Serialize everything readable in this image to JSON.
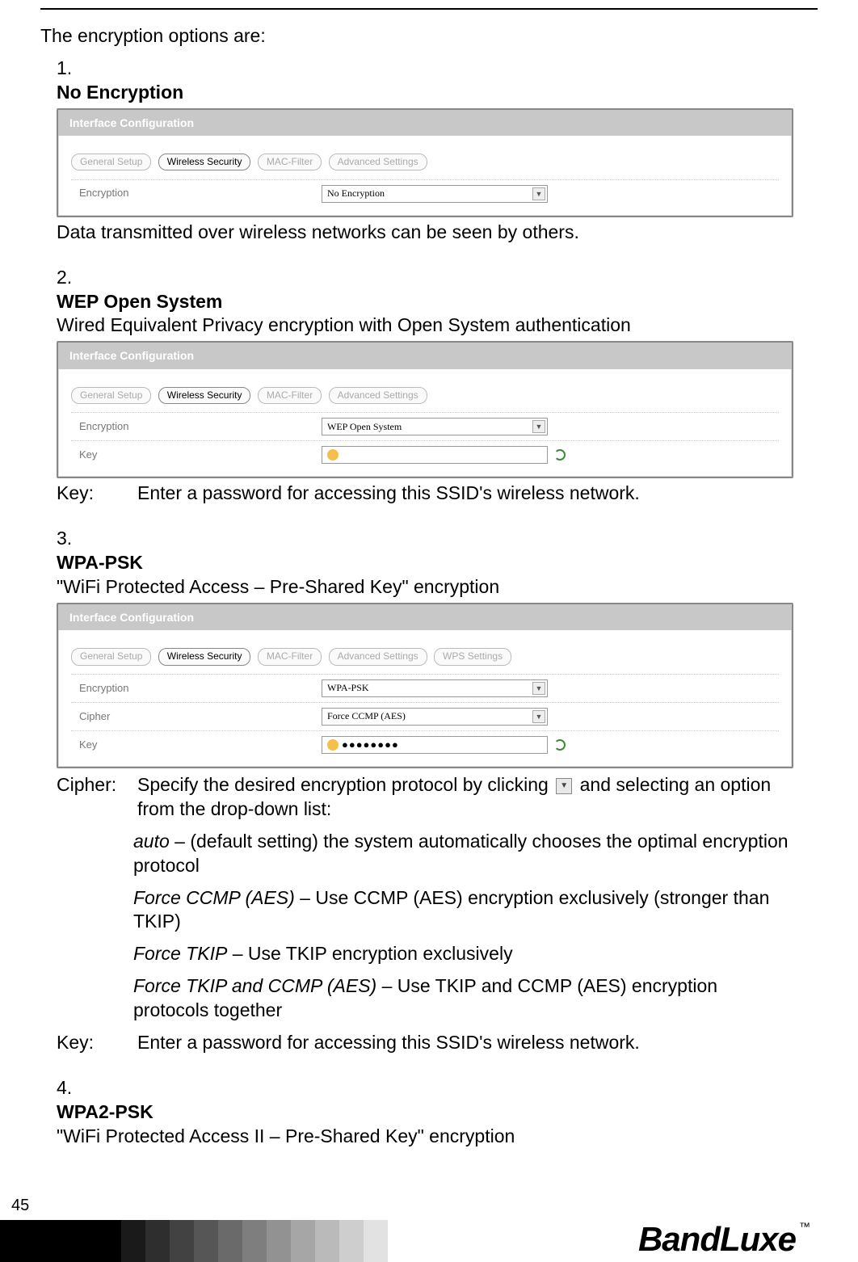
{
  "page_number": "45",
  "brand": "BandLuxe",
  "brand_tm": "™",
  "intro": "The encryption options are:",
  "panel_title": "Interface Configuration",
  "tabs": {
    "general": "General Setup",
    "security": "Wireless Security",
    "mac": "MAC-Filter",
    "advanced": "Advanced Settings",
    "wps": "WPS Settings"
  },
  "labels": {
    "encryption": "Encryption",
    "cipher": "Cipher",
    "key": "Key"
  },
  "items": {
    "one": {
      "num": "1.",
      "title": "No Encryption",
      "dropdown_value": "No Encryption",
      "after": "Data transmitted over wireless networks can be seen by others."
    },
    "two": {
      "num": "2.",
      "title": "WEP Open System",
      "subtitle": "Wired Equivalent Privacy encryption with Open System authentication",
      "dropdown_value": "WEP Open System",
      "after_label": "Key:",
      "after_text": "Enter a password for accessing this SSID's wireless network."
    },
    "three": {
      "num": "3.",
      "title": "WPA-PSK",
      "subtitle": "\"WiFi Protected Access – Pre-Shared Key\" encryption",
      "dropdown_value": "WPA-PSK",
      "cipher_value": "Force CCMP (AES)",
      "key_dots": "●●●●●●●●",
      "cipher_label": "Cipher:",
      "cipher_intro_a": "Specify the desired encryption protocol by clicking",
      "cipher_intro_b": "and selecting an option from the drop-down list:",
      "opts": {
        "auto_name": "auto",
        "auto_desc": " – (default setting) the system automatically chooses the optimal encryption protocol",
        "ccmp_name": "Force CCMP (AES)",
        "ccmp_desc": " – Use CCMP (AES) encryption exclusively (stronger than TKIP)",
        "tkip_name": "Force TKIP",
        "tkip_desc": " – Use TKIP encryption exclusively",
        "both_name": "Force TKIP and CCMP (AES)",
        "both_desc": " – Use TKIP and CCMP (AES) encryption protocols together"
      },
      "key_label": "Key:",
      "key_text": "Enter a password for accessing this SSID's wireless network."
    },
    "four": {
      "num": "4.",
      "title": "WPA2-PSK",
      "subtitle": "\"WiFi Protected Access II – Pre-Shared Key\" encryption"
    }
  },
  "footer_gradient": [
    "#000000",
    "#000000",
    "#000000",
    "#000000",
    "#000000",
    "#1a1a1a",
    "#2e2e2e",
    "#424242",
    "#565656",
    "#6a6a6a",
    "#7e7e7e",
    "#929292",
    "#a6a6a6",
    "#bababa",
    "#cecece",
    "#e2e2e2"
  ],
  "grad_block_width": 30,
  "colors": {
    "panel_header_bg": "#c8c8c8",
    "tab_inactive_text": "#aaaaaa",
    "tab_border": "#bbbbbb",
    "form_label_text": "#777777",
    "key_icon": "#f5c04a",
    "cycle_icon": "#3a8a3a"
  }
}
